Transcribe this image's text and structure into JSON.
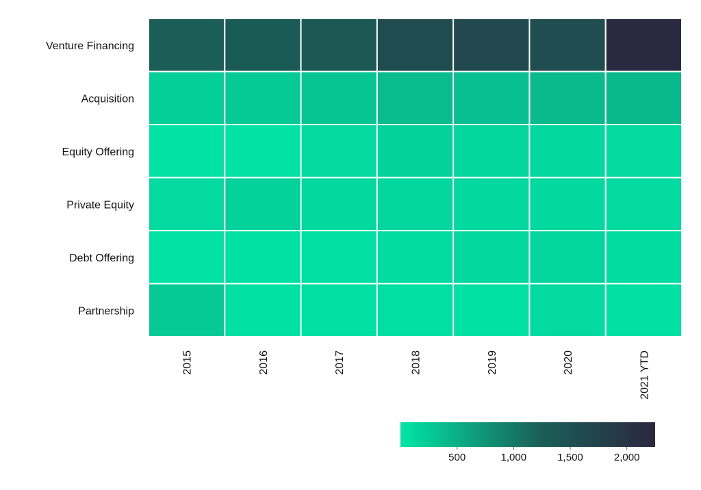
{
  "chart_data": {
    "type": "heatmap",
    "title": "",
    "xlabel": "",
    "ylabel": "",
    "x": [
      "2015",
      "2016",
      "2017",
      "2018",
      "2019",
      "2020",
      "2021 YTD"
    ],
    "y": [
      "Venture Financing",
      "Acquisition",
      "Equity Offering",
      "Private Equity",
      "Debt Offering",
      "Partnership"
    ],
    "values": [
      [
        1250,
        1300,
        1350,
        1600,
        1620,
        1550,
        2200
      ],
      [
        200,
        250,
        300,
        380,
        350,
        400,
        420
      ],
      [
        20,
        30,
        100,
        180,
        150,
        120,
        100
      ],
      [
        100,
        180,
        120,
        130,
        120,
        110,
        100
      ],
      [
        30,
        40,
        60,
        80,
        120,
        150,
        80
      ],
      [
        250,
        40,
        60,
        60,
        40,
        100,
        60
      ]
    ],
    "colorbar": {
      "range": [
        0,
        2250
      ],
      "ticks": [
        500,
        1000,
        1500,
        2000
      ],
      "tick_labels": [
        "500",
        "1,000",
        "1,500",
        "2,000"
      ],
      "colors": [
        "#00e5a6",
        "#1a5f57",
        "#2c2640"
      ]
    },
    "grid": "white cell borders",
    "legend": "bottom-right colorbar"
  }
}
